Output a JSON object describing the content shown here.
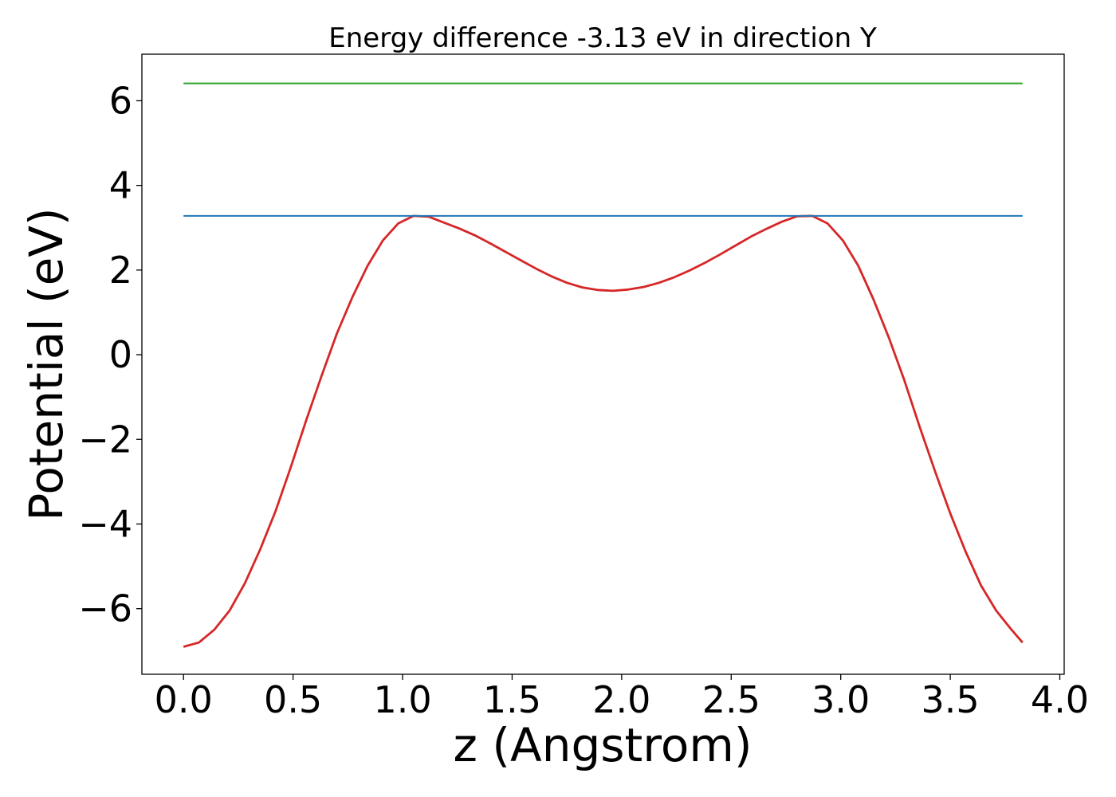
{
  "chart_data": {
    "type": "line",
    "title": "Energy difference -3.13 eV in direction Y",
    "xlabel": "z (Angstrom)",
    "ylabel": "Potential (eV)",
    "xlim": [
      -0.19,
      4.02
    ],
    "ylim": [
      -7.55,
      7.1
    ],
    "xticks": [
      0.0,
      0.5,
      1.0,
      1.5,
      2.0,
      2.5,
      3.0,
      3.5,
      4.0
    ],
    "xtick_labels": [
      "0.0",
      "0.5",
      "1.0",
      "1.5",
      "2.0",
      "2.5",
      "3.0",
      "3.5",
      "4.0"
    ],
    "yticks": [
      -6,
      -4,
      -2,
      0,
      2,
      4,
      6
    ],
    "ytick_labels": [
      "−6",
      "−4",
      "−2",
      "0",
      "2",
      "4",
      "6"
    ],
    "grid": false,
    "series": [
      {
        "color": "#d62728",
        "x": [
          0.0,
          0.07,
          0.14,
          0.21,
          0.28,
          0.35,
          0.42,
          0.49,
          0.56,
          0.63,
          0.7,
          0.77,
          0.84,
          0.91,
          0.98,
          1.05,
          1.12,
          1.19,
          1.26,
          1.33,
          1.4,
          1.47,
          1.54,
          1.61,
          1.68,
          1.75,
          1.82,
          1.89,
          1.96,
          2.03,
          2.1,
          2.17,
          2.24,
          2.31,
          2.38,
          2.45,
          2.52,
          2.59,
          2.66,
          2.73,
          2.8,
          2.87,
          2.94,
          3.01,
          3.08,
          3.15,
          3.22,
          3.29,
          3.36,
          3.43,
          3.5,
          3.57,
          3.64,
          3.71,
          3.78,
          3.83
        ],
        "y": [
          -6.9,
          -6.8,
          -6.5,
          -6.05,
          -5.4,
          -4.6,
          -3.7,
          -2.65,
          -1.55,
          -0.5,
          0.5,
          1.35,
          2.1,
          2.7,
          3.1,
          3.28,
          3.26,
          3.12,
          2.98,
          2.82,
          2.63,
          2.43,
          2.23,
          2.03,
          1.85,
          1.7,
          1.59,
          1.53,
          1.51,
          1.54,
          1.6,
          1.7,
          1.83,
          1.99,
          2.17,
          2.37,
          2.58,
          2.79,
          2.97,
          3.14,
          3.27,
          3.28,
          3.1,
          2.7,
          2.1,
          1.3,
          0.4,
          -0.6,
          -1.7,
          -2.75,
          -3.75,
          -4.65,
          -5.45,
          -6.05,
          -6.5,
          -6.8
        ]
      },
      {
        "color": "#1f77b4",
        "x": [
          0.0,
          3.83
        ],
        "y": [
          3.28,
          3.28
        ]
      },
      {
        "color": "#2ca02c",
        "x": [
          0.0,
          3.83
        ],
        "y": [
          6.41,
          6.41
        ]
      }
    ]
  }
}
